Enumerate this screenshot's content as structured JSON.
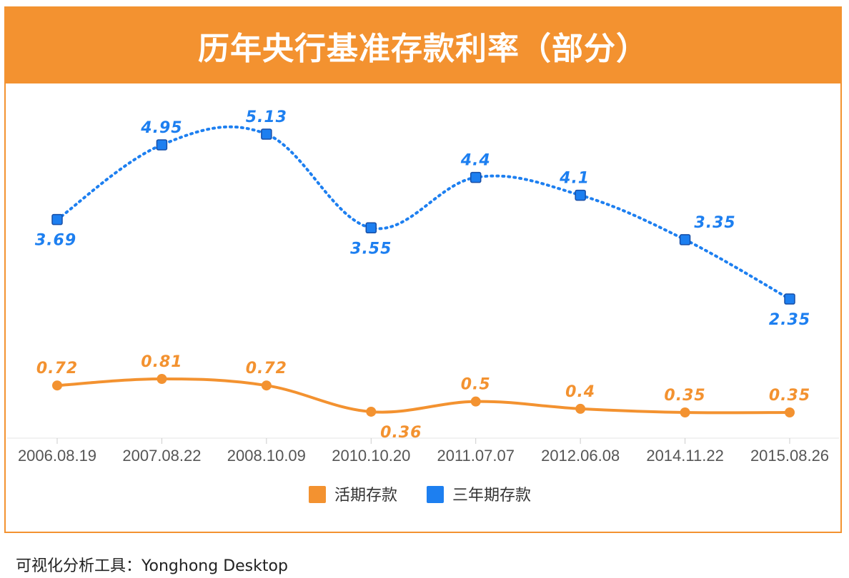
{
  "title": "历年央行基准存款利率（部分）",
  "footer": "可视化分析工具：Yonghong Desktop",
  "colors": {
    "accent": "#f39230",
    "series_orange": "#f39230",
    "series_blue": "#1d7ff0",
    "marker_border_blue": "#174ea6"
  },
  "chart_data": {
    "type": "line",
    "categories": [
      "2006.08.19",
      "2007.08.22",
      "2008.10.09",
      "2010.10.20",
      "2011.07.07",
      "2012.06.08",
      "2014.11.22",
      "2015.08.26"
    ],
    "series": [
      {
        "name": "活期存款",
        "color": "#f39230",
        "line_style": "solid",
        "marker": "circle",
        "values": [
          0.72,
          0.81,
          0.72,
          0.36,
          0.5,
          0.4,
          0.35,
          0.35
        ],
        "labels": [
          "0.72",
          "0.81",
          "0.72",
          "0.36",
          "0.5",
          "0.4",
          "0.35",
          "0.35"
        ]
      },
      {
        "name": "三年期存款",
        "color": "#1d7ff0",
        "line_style": "dotted",
        "marker": "square",
        "values": [
          3.69,
          4.95,
          5.13,
          3.55,
          4.4,
          4.1,
          3.35,
          2.35
        ],
        "labels": [
          "3.69",
          "4.95",
          "5.13",
          "3.55",
          "4.4",
          "4.1",
          "3.35",
          "2.35"
        ]
      }
    ],
    "legend_position": "bottom",
    "grid": false
  }
}
